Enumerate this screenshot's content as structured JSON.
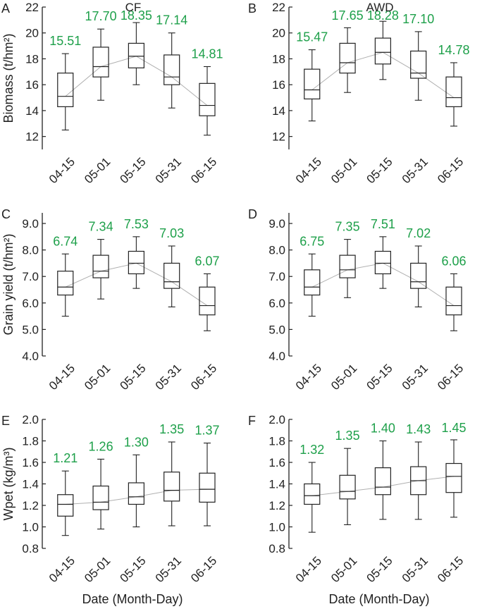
{
  "figure": {
    "x_axis_title": "Date (Month-Day)",
    "label_color": "#1ea04a",
    "box_color": "#222222",
    "trend_color": "#b0b0b0"
  },
  "chart_data": [
    {
      "type": "box",
      "panel": "A",
      "title": "CF",
      "ylabel": "Biomass (t/hm²)",
      "ylim": [
        11,
        22
      ],
      "yticks": [
        "12",
        "14",
        "16",
        "18",
        "20",
        "22"
      ],
      "categories": [
        "04-15",
        "05-01",
        "05-15",
        "05-31",
        "06-15"
      ],
      "means": [
        "15.51",
        "17.70",
        "18.35",
        "17.14",
        "14.81"
      ],
      "boxes": [
        {
          "min": 12.5,
          "q1": 14.3,
          "median": 15.1,
          "q3": 16.9,
          "max": 18.4
        },
        {
          "min": 14.8,
          "q1": 16.6,
          "median": 17.4,
          "q3": 18.9,
          "max": 20.3
        },
        {
          "min": 16.0,
          "q1": 17.3,
          "median": 18.2,
          "q3": 19.2,
          "max": 20.8
        },
        {
          "min": 14.2,
          "q1": 16.0,
          "median": 16.6,
          "q3": 18.3,
          "max": 20.0
        },
        {
          "min": 12.1,
          "q1": 13.6,
          "median": 14.4,
          "q3": 16.1,
          "max": 17.4
        }
      ]
    },
    {
      "type": "box",
      "panel": "B",
      "title": "AWD",
      "ylabel": "",
      "ylim": [
        11,
        22
      ],
      "yticks": [
        "12",
        "14",
        "16",
        "18",
        "20",
        "22"
      ],
      "categories": [
        "04-15",
        "05-01",
        "05-15",
        "05-31",
        "06-15"
      ],
      "means": [
        "15.47",
        "17.65",
        "18.28",
        "17.10",
        "14.78"
      ],
      "boxes": [
        {
          "min": 13.2,
          "q1": 14.9,
          "median": 15.6,
          "q3": 17.2,
          "max": 18.7
        },
        {
          "min": 15.4,
          "q1": 16.9,
          "median": 17.7,
          "q3": 19.2,
          "max": 20.4
        },
        {
          "min": 16.4,
          "q1": 17.6,
          "median": 18.5,
          "q3": 19.6,
          "max": 20.9
        },
        {
          "min": 14.8,
          "q1": 16.5,
          "median": 16.9,
          "q3": 18.6,
          "max": 20.1
        },
        {
          "min": 12.8,
          "q1": 14.3,
          "median": 15.0,
          "q3": 16.6,
          "max": 17.7
        }
      ]
    },
    {
      "type": "box",
      "panel": "C",
      "title": "",
      "ylabel": "Grain yield (t/hm²)",
      "ylim": [
        4,
        9.4
      ],
      "yticks": [
        "4.0",
        "5.0",
        "6.0",
        "7.0",
        "8.0",
        "9.0"
      ],
      "categories": [
        "04-15",
        "05-01",
        "05-15",
        "05-31",
        "06-15"
      ],
      "means": [
        "6.74",
        "7.34",
        "7.53",
        "7.03",
        "6.07"
      ],
      "boxes": [
        {
          "min": 5.5,
          "q1": 6.3,
          "median": 6.6,
          "q3": 7.2,
          "max": 7.85
        },
        {
          "min": 6.15,
          "q1": 6.95,
          "median": 7.2,
          "q3": 7.8,
          "max": 8.4
        },
        {
          "min": 6.55,
          "q1": 7.1,
          "median": 7.5,
          "q3": 7.95,
          "max": 8.5
        },
        {
          "min": 5.85,
          "q1": 6.55,
          "median": 6.8,
          "q3": 7.5,
          "max": 8.15
        },
        {
          "min": 4.95,
          "q1": 5.55,
          "median": 5.9,
          "q3": 6.6,
          "max": 7.1
        }
      ]
    },
    {
      "type": "box",
      "panel": "D",
      "title": "",
      "ylabel": "",
      "ylim": [
        4,
        9.4
      ],
      "yticks": [
        "4.0",
        "5.0",
        "6.0",
        "7.0",
        "8.0",
        "9.0"
      ],
      "categories": [
        "04-15",
        "05-01",
        "05-15",
        "05-31",
        "06-15"
      ],
      "means": [
        "6.75",
        "7.35",
        "7.51",
        "7.02",
        "6.06"
      ],
      "boxes": [
        {
          "min": 5.5,
          "q1": 6.3,
          "median": 6.6,
          "q3": 7.25,
          "max": 7.85
        },
        {
          "min": 6.2,
          "q1": 6.95,
          "median": 7.25,
          "q3": 7.8,
          "max": 8.4
        },
        {
          "min": 6.55,
          "q1": 7.1,
          "median": 7.5,
          "q3": 7.95,
          "max": 8.5
        },
        {
          "min": 5.85,
          "q1": 6.55,
          "median": 6.8,
          "q3": 7.5,
          "max": 8.15
        },
        {
          "min": 4.95,
          "q1": 5.55,
          "median": 5.9,
          "q3": 6.6,
          "max": 7.1
        }
      ]
    },
    {
      "type": "box",
      "panel": "E",
      "title": "",
      "ylabel": "Wpet (kg/m³)",
      "ylim": [
        0.8,
        2.0
      ],
      "yticks": [
        "0.8",
        "1.0",
        "1.2",
        "1.4",
        "1.6",
        "1.8",
        "2.0"
      ],
      "categories": [
        "04-15",
        "05-01",
        "05-15",
        "05-31",
        "06-15"
      ],
      "means": [
        "1.21",
        "1.26",
        "1.30",
        "1.35",
        "1.37"
      ],
      "boxes": [
        {
          "min": 0.92,
          "q1": 1.1,
          "median": 1.21,
          "q3": 1.3,
          "max": 1.52
        },
        {
          "min": 0.98,
          "q1": 1.16,
          "median": 1.23,
          "q3": 1.38,
          "max": 1.63
        },
        {
          "min": 1.0,
          "q1": 1.21,
          "median": 1.28,
          "q3": 1.41,
          "max": 1.67
        },
        {
          "min": 1.01,
          "q1": 1.24,
          "median": 1.34,
          "q3": 1.51,
          "max": 1.79
        },
        {
          "min": 1.01,
          "q1": 1.23,
          "median": 1.35,
          "q3": 1.5,
          "max": 1.78
        }
      ]
    },
    {
      "type": "box",
      "panel": "F",
      "title": "",
      "ylabel": "",
      "ylim": [
        0.8,
        2.0
      ],
      "yticks": [
        "0.8",
        "1.0",
        "1.2",
        "1.4",
        "1.6",
        "1.8",
        "2.0"
      ],
      "categories": [
        "04-15",
        "05-01",
        "05-15",
        "05-31",
        "06-15"
      ],
      "means": [
        "1.32",
        "1.35",
        "1.40",
        "1.43",
        "1.45"
      ],
      "boxes": [
        {
          "min": 0.95,
          "q1": 1.21,
          "median": 1.29,
          "q3": 1.4,
          "max": 1.6
        },
        {
          "min": 1.02,
          "q1": 1.26,
          "median": 1.33,
          "q3": 1.48,
          "max": 1.73
        },
        {
          "min": 1.07,
          "q1": 1.3,
          "median": 1.37,
          "q3": 1.55,
          "max": 1.8
        },
        {
          "min": 1.07,
          "q1": 1.3,
          "median": 1.43,
          "q3": 1.56,
          "max": 1.79
        },
        {
          "min": 1.09,
          "q1": 1.32,
          "median": 1.47,
          "q3": 1.59,
          "max": 1.81
        }
      ]
    }
  ]
}
